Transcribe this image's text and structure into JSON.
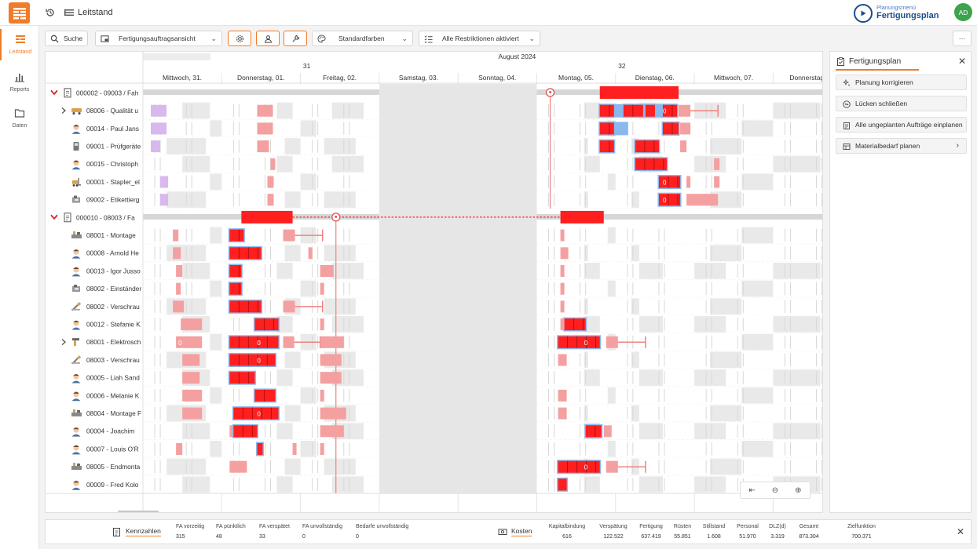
{
  "app": {
    "title": "Leitstand",
    "plan_menu_sub": "Planungsmenü",
    "plan_menu_title": "Fertigungsplan",
    "user_initials": "AD"
  },
  "nav": [
    {
      "label": "Leitstand",
      "icon": "gantt-icon"
    },
    {
      "label": "Reports",
      "icon": "bar-chart-icon"
    },
    {
      "label": "Daten",
      "icon": "folder-icon"
    }
  ],
  "toolbar": {
    "search_label": "Suche",
    "view_select": "Fertigungsauftragsansicht",
    "colors_select": "Standardfarben",
    "restrictions_select": "Alle Restriktionen aktiviert",
    "more": "···"
  },
  "colors": {
    "accent": "#f07b28",
    "navy": "#1a4d8a",
    "critical": "#ff1f1f",
    "light": "#f4a0a0",
    "selected": "#8ab8ee",
    "ghost": "#d9b8ee",
    "group": "#d6d6d6",
    "weekend": "#e6e6e6"
  },
  "timeline": {
    "month": "August 2024",
    "week_numbers": [
      {
        "label": "31",
        "day_index": 2
      },
      {
        "label": "32",
        "day_index": 6
      }
    ],
    "days": [
      "Mittwoch, 31.",
      "Donnerstag, 01.",
      "Freitag, 02.",
      "Samstag, 03.",
      "Sonntag, 04.",
      "Montag, 05.",
      "Dienstag, 06.",
      "Mittwoch, 07.",
      "Donnerstag, 08"
    ],
    "weekend_days": [
      3,
      4
    ]
  },
  "rows": [
    {
      "kind": "group",
      "label": "000002 - 09003 / Fah",
      "icon": "document-icon",
      "milestone_day": 5.17,
      "main_bars": [
        [
          5.8,
          6.8
        ]
      ]
    },
    {
      "kind": "res",
      "label": "08006 - Qualität u",
      "icon": "conveyor-icon",
      "expand": true,
      "bars": [
        [
          0.1,
          0.3,
          "g"
        ],
        [
          1.45,
          1.65,
          "l"
        ],
        [
          5.8,
          6.6,
          "s"
        ],
        [
          5.8,
          5.98,
          "c"
        ],
        [
          6.1,
          6.35,
          "c"
        ],
        [
          6.38,
          6.5,
          "c"
        ],
        [
          6.6,
          6.78,
          "c"
        ],
        [
          6.8,
          7.3,
          "l"
        ]
      ],
      "zero": [
        6.6
      ]
    },
    {
      "kind": "res",
      "label": "00014 - Paul Jans",
      "icon": "person-icon",
      "bars": [
        [
          0.1,
          0.3,
          "g"
        ],
        [
          1.45,
          1.65,
          "l"
        ],
        [
          5.8,
          6.15,
          "s"
        ],
        [
          5.8,
          5.98,
          "c"
        ],
        [
          6.6,
          6.8,
          "c"
        ],
        [
          6.82,
          6.95,
          "l"
        ]
      ]
    },
    {
      "kind": "res",
      "label": "09001 - Prüfgeräte",
      "icon": "device-icon",
      "bars": [
        [
          0.1,
          0.22,
          "g"
        ],
        [
          1.45,
          1.6,
          "l"
        ],
        [
          5.8,
          5.98,
          "c"
        ],
        [
          6.25,
          6.55,
          "c"
        ],
        [
          6.82,
          6.9,
          "l"
        ]
      ]
    },
    {
      "kind": "res",
      "label": "00015 - Christoph",
      "icon": "person-icon",
      "bars": [
        [
          1.62,
          1.68,
          "l"
        ],
        [
          6.25,
          6.65,
          "c"
        ],
        [
          7.25,
          7.32,
          "l"
        ]
      ]
    },
    {
      "kind": "res",
      "label": "00001 - Stapler_el",
      "icon": "forklift-icon",
      "bars": [
        [
          0.22,
          0.32,
          "g"
        ],
        [
          1.58,
          1.66,
          "l"
        ],
        [
          6.55,
          6.82,
          "c"
        ],
        [
          6.9,
          6.95,
          "l"
        ],
        [
          7.25,
          7.32,
          "l"
        ]
      ],
      "zero": [
        6.6
      ]
    },
    {
      "kind": "res",
      "label": "09002 - Etikettierg",
      "icon": "machine-icon",
      "bars": [
        [
          0.22,
          0.32,
          "g"
        ],
        [
          1.58,
          1.66,
          "l"
        ],
        [
          6.55,
          6.82,
          "c"
        ],
        [
          6.9,
          7.3,
          "l"
        ]
      ],
      "zero": [
        6.6
      ]
    },
    {
      "kind": "group",
      "label": "000010 - 08003 / Fa",
      "icon": "document-icon",
      "milestone_day": 2.45,
      "main_bars": [
        [
          1.25,
          1.9
        ],
        [
          5.3,
          5.85
        ]
      ],
      "dotted": [
        1.9,
        5.3
      ]
    },
    {
      "kind": "res",
      "label": "08001 - Montage",
      "icon": "assembly-icon",
      "bars": [
        [
          0.38,
          0.45,
          "l"
        ],
        [
          1.1,
          1.28,
          "c"
        ],
        [
          1.78,
          2.28,
          "l"
        ],
        [
          5.3,
          5.35,
          "l"
        ]
      ]
    },
    {
      "kind": "res",
      "label": "00008 - Arnold He",
      "icon": "person-icon",
      "bars": [
        [
          0.38,
          0.48,
          "l"
        ],
        [
          1.1,
          1.5,
          "c"
        ],
        [
          2.1,
          2.15,
          "l"
        ],
        [
          5.3,
          5.4,
          "l"
        ]
      ]
    },
    {
      "kind": "res",
      "label": "00013 - Igor Jusso",
      "icon": "person-icon",
      "bars": [
        [
          0.42,
          0.5,
          "l"
        ],
        [
          1.1,
          1.25,
          "c"
        ],
        [
          2.25,
          2.42,
          "l"
        ],
        [
          5.3,
          5.35,
          "l"
        ]
      ]
    },
    {
      "kind": "res",
      "label": "08002 - Einständer",
      "icon": "machine-icon",
      "bars": [
        [
          0.42,
          0.48,
          "l"
        ],
        [
          1.1,
          1.25,
          "c"
        ],
        [
          2.25,
          2.3,
          "l"
        ],
        [
          5.3,
          5.35,
          "l"
        ]
      ]
    },
    {
      "kind": "res",
      "label": "08002 - Verschrau",
      "icon": "screwdriver-icon",
      "bars": [
        [
          0.38,
          0.52,
          "l"
        ],
        [
          1.1,
          1.5,
          "c"
        ],
        [
          1.78,
          2.28,
          "l"
        ],
        [
          5.3,
          5.35,
          "l"
        ]
      ]
    },
    {
      "kind": "res",
      "label": "00012 - Stefanie K",
      "icon": "person-icon",
      "bars": [
        [
          0.48,
          0.75,
          "l"
        ],
        [
          1.42,
          1.72,
          "c"
        ],
        [
          2.25,
          2.3,
          "l"
        ],
        [
          5.35,
          5.62,
          "c"
        ],
        [
          5.3,
          5.35,
          "l"
        ]
      ]
    },
    {
      "kind": "res",
      "label": "08001 - Elektrosch",
      "icon": "tool-icon",
      "expand": true,
      "bars": [
        [
          0.42,
          0.75,
          "l"
        ],
        [
          1.1,
          1.72,
          "c"
        ],
        [
          1.78,
          2.25,
          "l"
        ],
        [
          2.25,
          2.55,
          "l"
        ],
        [
          5.27,
          5.8,
          "c"
        ],
        [
          5.88,
          6.38,
          "l"
        ]
      ],
      "zero": [
        0.45,
        1.45,
        5.6
      ]
    },
    {
      "kind": "res",
      "label": "08003 - Verschrau",
      "icon": "screwdriver-icon",
      "bars": [
        [
          0.5,
          0.72,
          "l"
        ],
        [
          1.1,
          1.68,
          "c"
        ],
        [
          2.25,
          2.52,
          "l"
        ],
        [
          5.27,
          5.38,
          "l"
        ]
      ],
      "zero": [
        1.45
      ]
    },
    {
      "kind": "res",
      "label": "00005 - Liah Sand",
      "icon": "person-icon",
      "bars": [
        [
          0.5,
          0.72,
          "l"
        ],
        [
          1.1,
          1.42,
          "c"
        ],
        [
          2.25,
          2.52,
          "l"
        ]
      ]
    },
    {
      "kind": "res",
      "label": "00006 - Melanie K",
      "icon": "person-icon",
      "bars": [
        [
          0.5,
          0.75,
          "l"
        ],
        [
          1.42,
          1.68,
          "c"
        ],
        [
          2.25,
          2.3,
          "l"
        ],
        [
          5.27,
          5.38,
          "l"
        ]
      ]
    },
    {
      "kind": "res",
      "label": "08004 - Montage F",
      "icon": "assembly-icon",
      "bars": [
        [
          0.5,
          0.75,
          "l"
        ],
        [
          1.15,
          1.72,
          "c"
        ],
        [
          2.25,
          2.58,
          "l"
        ],
        [
          5.27,
          5.38,
          "l"
        ]
      ],
      "zero": [
        1.45
      ]
    },
    {
      "kind": "res",
      "label": "00004 - Joachim",
      "icon": "person-icon",
      "bars": [
        [
          1.1,
          1.15,
          "l"
        ],
        [
          1.15,
          1.45,
          "c"
        ],
        [
          2.25,
          2.55,
          "l"
        ],
        [
          5.62,
          5.82,
          "c"
        ],
        [
          5.85,
          5.95,
          "l"
        ]
      ]
    },
    {
      "kind": "res",
      "label": "00007 - Louis O'R",
      "icon": "person-icon",
      "bars": [
        [
          0.42,
          0.5,
          "l"
        ],
        [
          1.45,
          1.52,
          "c"
        ],
        [
          1.9,
          1.95,
          "l"
        ],
        [
          2.25,
          2.3,
          "l"
        ]
      ]
    },
    {
      "kind": "res",
      "label": "08005 - Endmonta",
      "icon": "assembly-icon",
      "bars": [
        [
          1.1,
          1.32,
          "l"
        ],
        [
          5.27,
          5.8,
          "c"
        ],
        [
          5.88,
          6.38,
          "l"
        ]
      ],
      "zero": [
        5.6
      ]
    },
    {
      "kind": "res",
      "label": "00009 - Fred Kolo",
      "icon": "person-icon",
      "bars": [
        [
          5.27,
          5.38,
          "c"
        ]
      ]
    }
  ],
  "side_panel": {
    "title": "Fertigungsplan",
    "buttons": [
      "Planung korrigieren",
      "Lücken schließen",
      "Alle ungeplanten Aufträge einplanen",
      "Materialbedarf planen"
    ]
  },
  "kennzahlen": {
    "title": "Kennzahlen",
    "items": [
      {
        "label": "FA vorzeitig",
        "value": "315"
      },
      {
        "label": "FA pünktlich",
        "value": "48"
      },
      {
        "label": "FA verspätet",
        "value": "33"
      },
      {
        "label": "FA unvollständig",
        "value": "0"
      },
      {
        "label": "Bedarfe unvollständig",
        "value": "0"
      }
    ]
  },
  "kosten": {
    "title": "Kosten",
    "items": [
      {
        "label": "Kapitalbindung",
        "value": "616"
      },
      {
        "label": "Verspätung",
        "value": "122.522"
      },
      {
        "label": "Fertigung",
        "value": "637.419"
      },
      {
        "label": "Rüsten",
        "value": "55.851"
      },
      {
        "label": "Stillstand",
        "value": "1.608"
      },
      {
        "label": "Personal",
        "value": "51.970"
      },
      {
        "label": "DLZ(d)",
        "value": "3.319"
      },
      {
        "label": "Gesamt",
        "value": "873.304"
      },
      {
        "label": "Zielfunktion",
        "value": "700.371"
      }
    ]
  }
}
